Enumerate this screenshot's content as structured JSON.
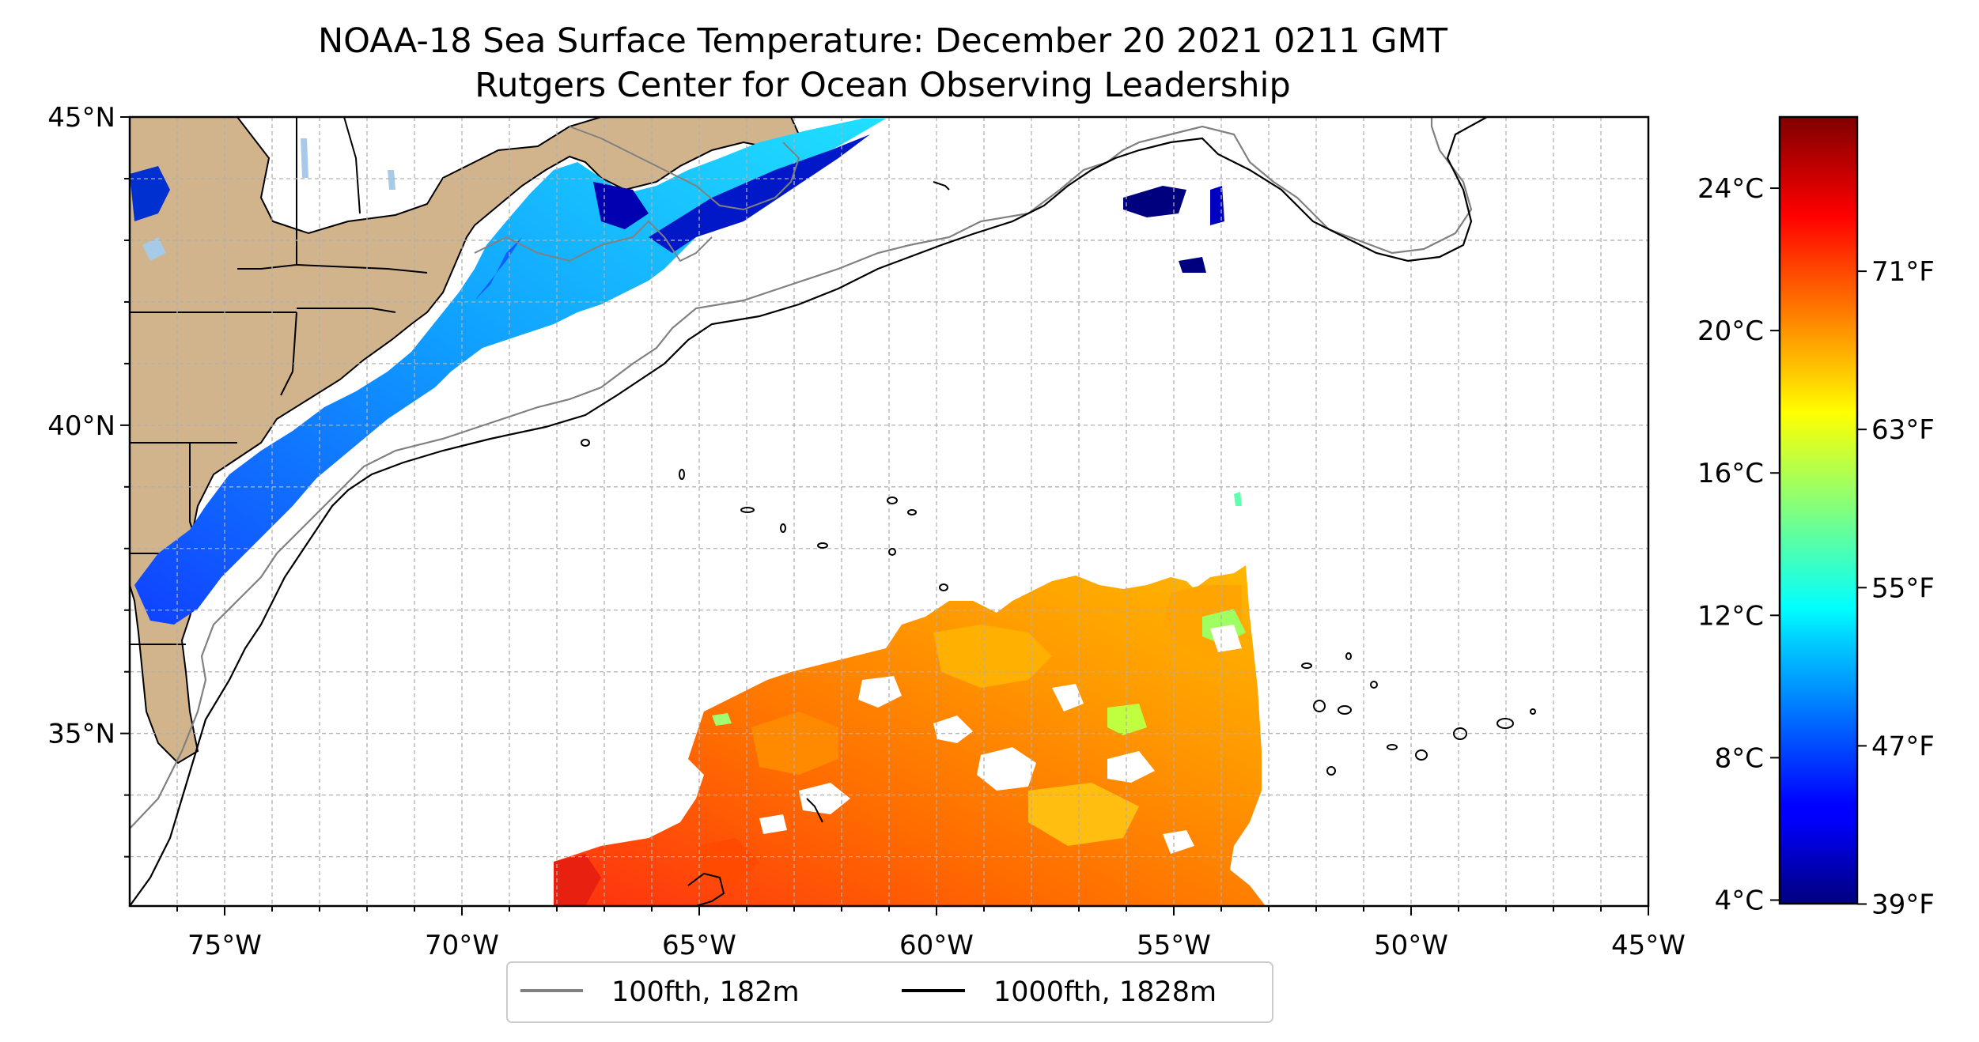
{
  "title": "NOAA-18 Sea Surface Temperature: December 20 2021 0211 GMT",
  "subtitle": "Rutgers Center for Ocean Observing Leadership",
  "map": {
    "lon_range": [
      -77,
      -45
    ],
    "lat_range": [
      32.2,
      45
    ],
    "x_ticks": [
      {
        "lon": -75,
        "label": "75°W"
      },
      {
        "lon": -70,
        "label": "70°W"
      },
      {
        "lon": -65,
        "label": "65°W"
      },
      {
        "lon": -60,
        "label": "60°W"
      },
      {
        "lon": -55,
        "label": "55°W"
      },
      {
        "lon": -50,
        "label": "50°W"
      },
      {
        "lon": -45,
        "label": "45°W"
      }
    ],
    "y_ticks": [
      {
        "lat": 45,
        "label": "45°N"
      },
      {
        "lat": 40,
        "label": "40°N"
      },
      {
        "lat": 35,
        "label": "35°N"
      }
    ],
    "grid": true,
    "land_color": "#d2b48c",
    "ocean_color": "#ffffff"
  },
  "legend": {
    "placement": "bottom-center",
    "items": [
      {
        "label": "100fth, 182m",
        "color": "#808080"
      },
      {
        "label": "1000fth, 1828m",
        "color": "#000000"
      }
    ]
  },
  "colorbar": {
    "colormap": "jet",
    "range_c": [
      3.9,
      26
    ],
    "celsius_ticks": [
      {
        "value": 4,
        "label": "4°C"
      },
      {
        "value": 8,
        "label": "8°C"
      },
      {
        "value": 12,
        "label": "12°C"
      },
      {
        "value": 16,
        "label": "16°C"
      },
      {
        "value": 20,
        "label": "20°C"
      },
      {
        "value": 24,
        "label": "24°C"
      }
    ],
    "fahrenheit_ticks": [
      {
        "value": 39,
        "label": "39°F"
      },
      {
        "value": 47,
        "label": "47°F"
      },
      {
        "value": 55,
        "label": "55°F"
      },
      {
        "value": 63,
        "label": "63°F"
      },
      {
        "value": 71,
        "label": "71°F"
      }
    ]
  }
}
